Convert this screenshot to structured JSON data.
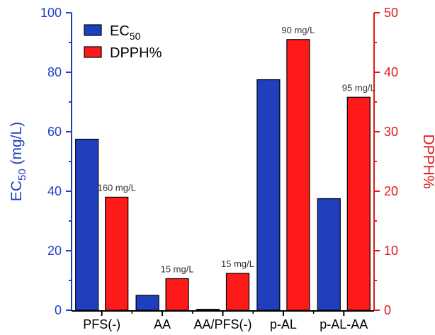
{
  "chart_data": {
    "type": "bar",
    "categories": [
      "PFS(-)",
      "AA",
      "AA/PFS(-)",
      "p-AL",
      "p-AL-AA"
    ],
    "series": [
      {
        "name": "EC50",
        "name_main": "EC",
        "name_sub": "50",
        "axis": "left",
        "color": "#1f3fbf",
        "values": [
          57.5,
          5,
          0.3,
          77.5,
          37.5
        ]
      },
      {
        "name": "DPPH%",
        "axis": "right",
        "color": "#ff1a1a",
        "values": [
          19,
          5.3,
          6.2,
          45.5,
          35.8
        ]
      }
    ],
    "annotations": [
      "160 mg/L",
      "15 mg/L",
      "15 mg/L",
      "90 mg/L",
      "95 mg/L"
    ],
    "left_axis": {
      "label_main": "EC",
      "label_sub": "50",
      "label_rest": " (mg/L)",
      "ylim": [
        0,
        100
      ],
      "ticks": [
        0,
        20,
        40,
        60,
        80,
        100
      ],
      "color": "#1f3fbf"
    },
    "right_axis": {
      "label": "DPPH%",
      "ylim": [
        0,
        50
      ],
      "ticks": [
        0,
        10,
        20,
        30,
        40,
        50
      ],
      "color": "#e01a1a"
    },
    "legend_placement": "top-left",
    "grid": false
  }
}
